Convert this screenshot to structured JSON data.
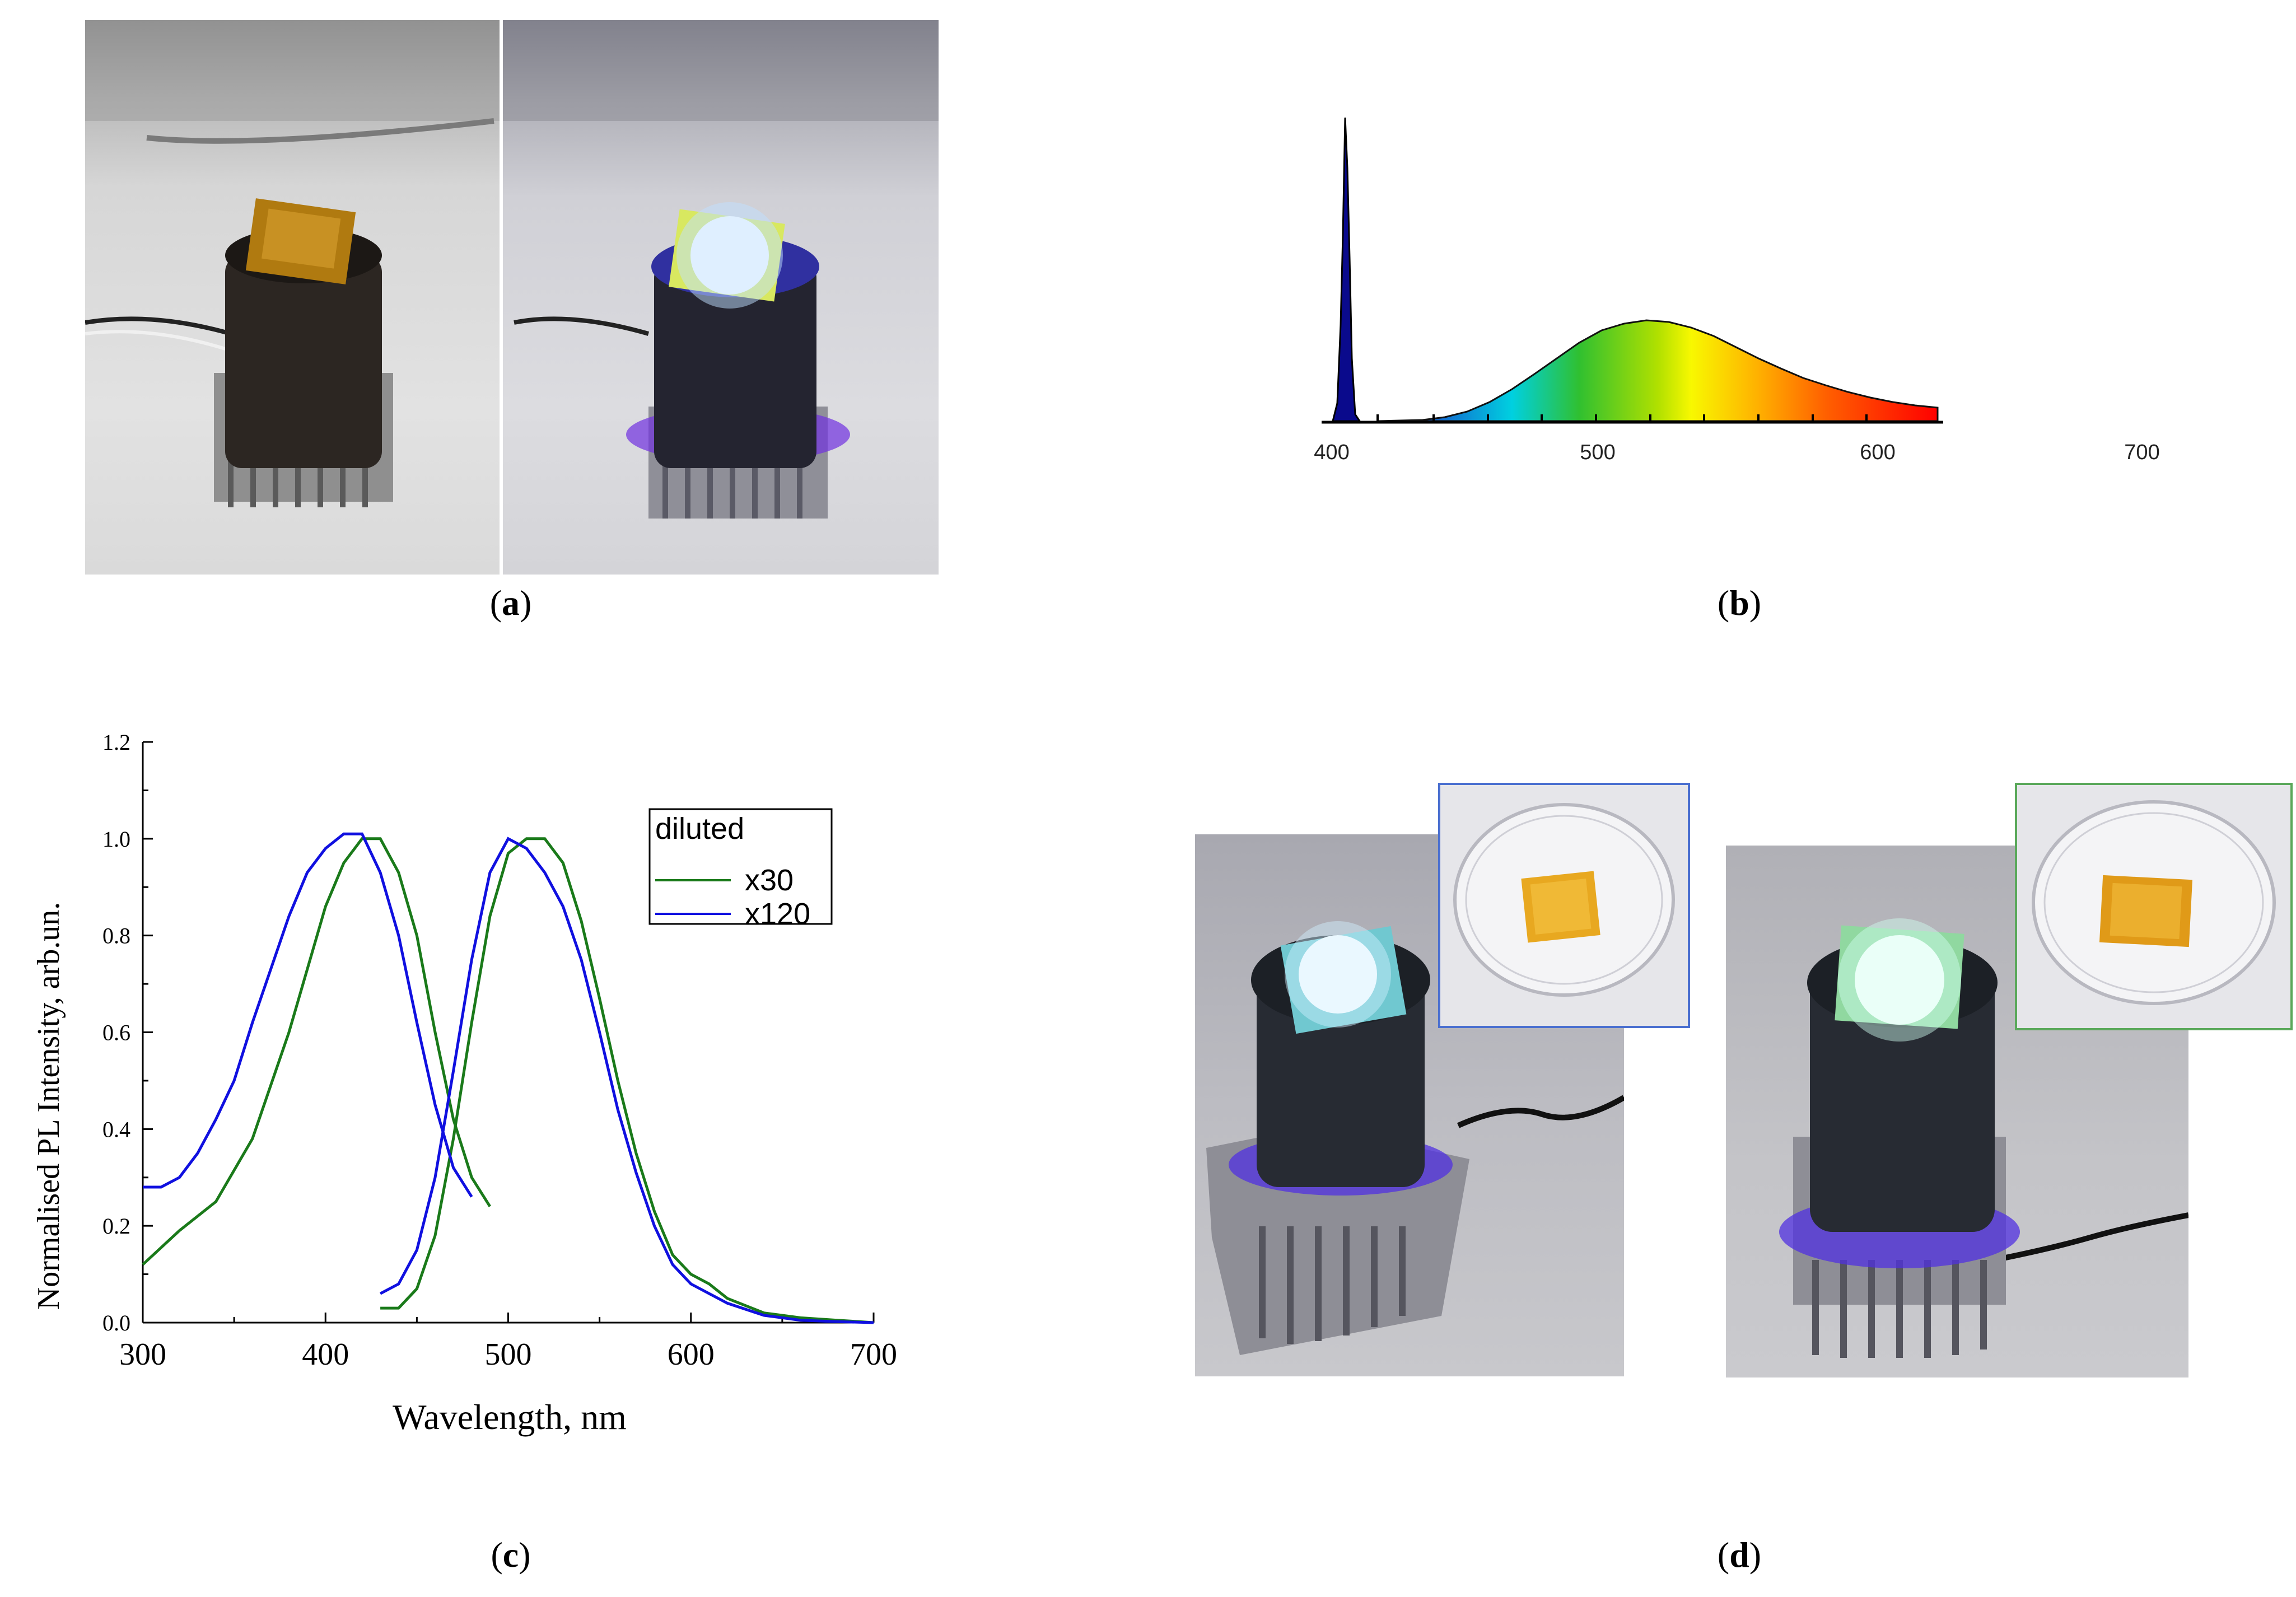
{
  "panels": {
    "a": {
      "open": "(",
      "letter": "a",
      "close": ")"
    },
    "b": {
      "open": "(",
      "letter": "b",
      "close": ")"
    },
    "c": {
      "open": "(",
      "letter": "c",
      "close": ")"
    },
    "d": {
      "open": "(",
      "letter": "d",
      "close": ")"
    }
  },
  "spectrum_b": {
    "tick_labels": [
      "400",
      "500",
      "600",
      "700"
    ],
    "x_range": [
      400,
      700
    ],
    "colors": {
      "peak": "#0a0a8c",
      "band_start": "#00d0e0",
      "band_green": "#40c000",
      "band_yellow": "#f0f000",
      "band_orange": "#ff8000",
      "band_red": "#ff0000"
    }
  },
  "chart_data": {
    "type": "line",
    "xlabel": "Wavelength, nm",
    "ylabel": "Normalised PL Intensity, arb.un.",
    "xlim": [
      300,
      700
    ],
    "ylim": [
      0.0,
      1.2
    ],
    "x_ticks": [
      "300",
      "400",
      "500",
      "600",
      "700"
    ],
    "y_ticks": [
      "0.0",
      "0.2",
      "0.4",
      "0.6",
      "0.8",
      "1.0",
      "1.2"
    ],
    "legend": {
      "title": "diluted",
      "position": "top-right"
    },
    "series": [
      {
        "name": "x30",
        "color": "#1a7a1a",
        "curves": [
          {
            "x": [
              300,
              320,
              340,
              360,
              380,
              400,
              410,
              420,
              430,
              440,
              450,
              460,
              470,
              480,
              490
            ],
            "y": [
              0.12,
              0.19,
              0.25,
              0.38,
              0.6,
              0.86,
              0.95,
              1.0,
              1.0,
              0.93,
              0.8,
              0.6,
              0.42,
              0.3,
              0.24
            ]
          },
          {
            "x": [
              430,
              440,
              450,
              460,
              470,
              480,
              490,
              500,
              510,
              520,
              530,
              540,
              550,
              560,
              570,
              580,
              590,
              600,
              610,
              620,
              640,
              660,
              680,
              700
            ],
            "y": [
              0.03,
              0.03,
              0.07,
              0.18,
              0.38,
              0.62,
              0.84,
              0.97,
              1.0,
              1.0,
              0.95,
              0.83,
              0.67,
              0.5,
              0.35,
              0.23,
              0.14,
              0.1,
              0.08,
              0.05,
              0.02,
              0.01,
              0.005,
              0.0
            ]
          }
        ]
      },
      {
        "name": "x120",
        "color": "#1010e0",
        "curves": [
          {
            "x": [
              300,
              310,
              320,
              330,
              340,
              350,
              360,
              370,
              380,
              390,
              400,
              410,
              420,
              430,
              440,
              450,
              460,
              470,
              480
            ],
            "y": [
              0.28,
              0.28,
              0.3,
              0.35,
              0.42,
              0.5,
              0.62,
              0.73,
              0.84,
              0.93,
              0.98,
              1.01,
              1.01,
              0.93,
              0.8,
              0.62,
              0.45,
              0.32,
              0.26
            ]
          },
          {
            "x": [
              430,
              440,
              450,
              460,
              470,
              480,
              490,
              500,
              510,
              520,
              530,
              540,
              550,
              560,
              570,
              580,
              590,
              600,
              610,
              620,
              640,
              660,
              680,
              700
            ],
            "y": [
              0.06,
              0.08,
              0.15,
              0.3,
              0.52,
              0.75,
              0.93,
              1.0,
              0.98,
              0.93,
              0.86,
              0.75,
              0.6,
              0.44,
              0.31,
              0.2,
              0.12,
              0.08,
              0.06,
              0.04,
              0.015,
              0.005,
              0.002,
              0.0
            ]
          }
        ]
      }
    ]
  }
}
